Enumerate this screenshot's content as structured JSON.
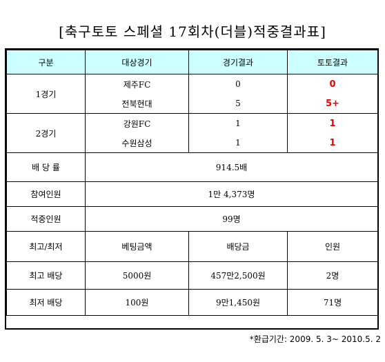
{
  "title": "[축구토토 스페셜 17회차(더블)적중결과표]",
  "header": {
    "col1": "구분",
    "col2": "대상경기",
    "col3": "경기결과",
    "col4": "토토결과"
  },
  "games": [
    {
      "label": "1경기",
      "rows": [
        {
          "team": "제주FC",
          "score": "0",
          "toto": "0"
        },
        {
          "team": "전북현대",
          "score": "5",
          "toto": "5+"
        }
      ]
    },
    {
      "label": "2경기",
      "rows": [
        {
          "team": "강원FC",
          "score": "1",
          "toto": "1"
        },
        {
          "team": "수원삼성",
          "score": "1",
          "toto": "1"
        }
      ]
    }
  ],
  "summary": {
    "payout_rate": {
      "label": "배 당 률",
      "value": "914.5배"
    },
    "participants": {
      "label": "참여인원",
      "value": "1만 4,373명"
    },
    "winners": {
      "label": "적중인원",
      "value": "99명"
    }
  },
  "payout_header": {
    "col1": "최고/최저",
    "col2": "베팅금액",
    "col3": "배당금",
    "col4": "인원"
  },
  "payouts": [
    {
      "label": "최고 배당",
      "bet": "5000원",
      "prize": "457만2,500원",
      "count": "2명"
    },
    {
      "label": "최저 배당",
      "bet": "100원",
      "prize": "9만1,450원",
      "count": "71명"
    }
  ],
  "note": "*환급기간: 2009. 5. 3~ 2010.5. 2",
  "colors": {
    "header_bg": "#ccffff",
    "result_red": "#ee0000"
  }
}
